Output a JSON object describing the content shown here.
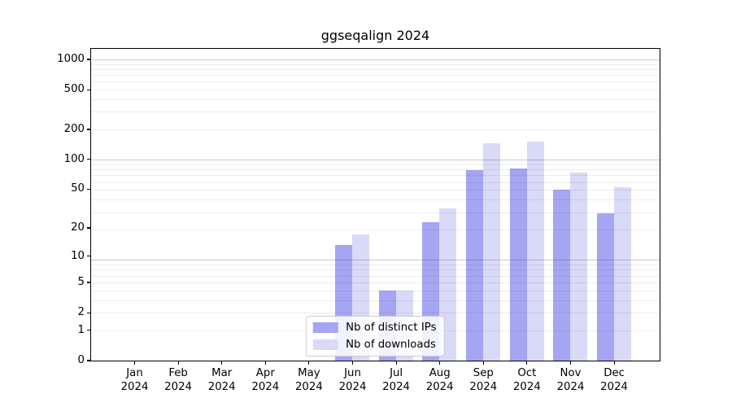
{
  "chart_data": {
    "type": "bar",
    "title": "ggseqalign 2024",
    "categories": [
      "Jan",
      "Feb",
      "Mar",
      "Apr",
      "May",
      "Jun",
      "Jul",
      "Aug",
      "Sep",
      "Oct",
      "Nov",
      "Dec"
    ],
    "category_year": "2024",
    "series": [
      {
        "name": "Nb of distinct IPs",
        "color": "#a5a5f3",
        "values": [
          0,
          0,
          0,
          0,
          0,
          13,
          4,
          23,
          78,
          80,
          49,
          28
        ]
      },
      {
        "name": "Nb of downloads",
        "color": "#d9d9f8",
        "values": [
          0,
          0,
          0,
          0,
          0,
          17,
          4,
          32,
          144,
          150,
          74,
          52
        ]
      }
    ],
    "y_axis": {
      "scale": "log1p",
      "ticks": [
        0,
        1,
        2,
        5,
        10,
        20,
        50,
        100,
        200,
        500,
        1000
      ],
      "top_value": 1280
    },
    "grid": {
      "orientation": "horizontal",
      "major_at": [
        10,
        100,
        1000
      ],
      "minor_decades": [
        1,
        10,
        100
      ]
    },
    "legend": {
      "position": "lower center"
    }
  }
}
